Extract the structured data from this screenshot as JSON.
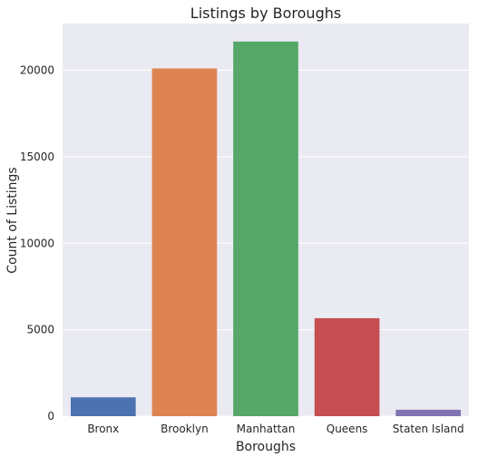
{
  "chart_data": {
    "type": "bar",
    "title": "Listings by Boroughs",
    "xlabel": "Boroughs",
    "ylabel": "Count of Listings",
    "categories": [
      "Bronx",
      "Brooklyn",
      "Manhattan",
      "Queens",
      "Staten Island"
    ],
    "values": [
      1091,
      20104,
      21661,
      5666,
      373
    ],
    "colors": [
      "#4c72b0",
      "#dd8452",
      "#55a868",
      "#c44e52",
      "#8172b3"
    ],
    "ylim": [
      0,
      22700
    ],
    "yticks": [
      0,
      5000,
      10000,
      15000,
      20000
    ],
    "grid": true,
    "background": "#eaeaf2"
  }
}
